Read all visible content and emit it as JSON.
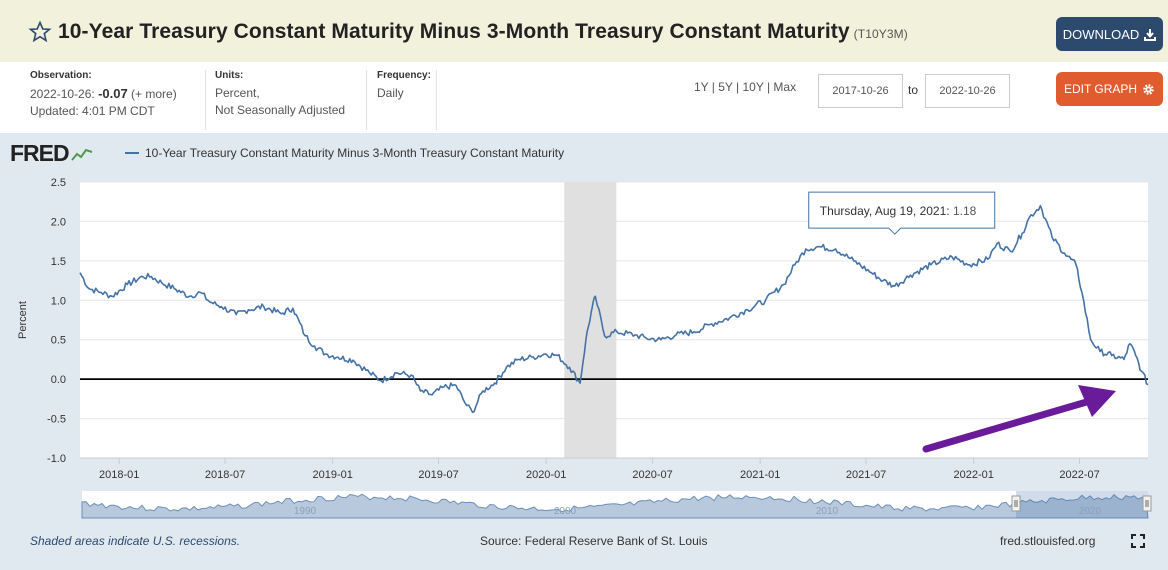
{
  "header": {
    "title": "10-Year Treasury Constant Maturity Minus 3-Month Treasury Constant Maturity",
    "series_id": "(T10Y3M)",
    "download_label": "DOWNLOAD"
  },
  "meta": {
    "observation_label": "Observation:",
    "observation_date": "2022-10-26:",
    "observation_value": "-0.07",
    "observation_more": "(+ more)",
    "updated": "Updated: 4:01 PM CDT",
    "units_label": "Units:",
    "units_line1": "Percent,",
    "units_line2": "Not Seasonally Adjusted",
    "frequency_label": "Frequency:",
    "frequency_value": "Daily"
  },
  "controls": {
    "ranges": "1Y | 5Y | 10Y | Max",
    "start_date": "2017-10-26",
    "to_label": "to",
    "end_date": "2022-10-26",
    "edit_label": "EDIT GRAPH"
  },
  "logo": "FRED",
  "footer": {
    "recession_note": "Shaded areas indicate U.S. recessions.",
    "source": "Source: Federal Reserve Bank of St. Louis",
    "site": "fred.stlouisfed.org"
  },
  "colors": {
    "line": "#4572a7",
    "recession": "#e0e0e0",
    "arrow": "#6a1b9a",
    "download": "#2c4a6e",
    "edit": "#e05c2e"
  },
  "chart_data": {
    "type": "line",
    "title": "",
    "xlabel": "",
    "ylabel": "Percent",
    "ylim": [
      -1.0,
      2.5
    ],
    "yticks": [
      2.5,
      2.0,
      1.5,
      1.0,
      0.5,
      0.0,
      -0.5,
      -1.0
    ],
    "ytick_labels": [
      "2.5",
      "2.0",
      "1.5",
      "1.0",
      "0.5",
      "0.0",
      "-0.5",
      "-1.0"
    ],
    "xlim": [
      "2017-10-26",
      "2022-10-26"
    ],
    "xticks": [
      "2018-01-01",
      "2018-07-01",
      "2019-01-01",
      "2019-07-01",
      "2020-01-01",
      "2020-07-01",
      "2021-01-01",
      "2021-07-01",
      "2022-01-01",
      "2022-07-01"
    ],
    "xtick_labels": [
      "2018-01",
      "2018-07",
      "2019-01",
      "2019-07",
      "2020-01",
      "2020-07",
      "2021-01",
      "2021-07",
      "2022-01",
      "2022-07"
    ],
    "grid": "horizontal",
    "recessions": [
      [
        "2020-02-01",
        "2020-04-30"
      ]
    ],
    "zero_line": 0.0,
    "series": [
      {
        "name": "10-Year Treasury Constant Maturity Minus 3-Month Treasury Constant Maturity",
        "x": [
          "2017-10-26",
          "2017-11-10",
          "2017-12-01",
          "2017-12-20",
          "2018-01-15",
          "2018-02-10",
          "2018-02-25",
          "2018-03-15",
          "2018-04-05",
          "2018-05-01",
          "2018-05-20",
          "2018-06-05",
          "2018-06-25",
          "2018-07-20",
          "2018-08-10",
          "2018-09-05",
          "2018-10-05",
          "2018-10-25",
          "2018-11-15",
          "2018-12-01",
          "2018-12-20",
          "2019-01-10",
          "2019-02-05",
          "2019-03-05",
          "2019-03-25",
          "2019-04-20",
          "2019-05-15",
          "2019-05-31",
          "2019-06-20",
          "2019-07-10",
          "2019-07-31",
          "2019-08-15",
          "2019-08-28",
          "2019-09-15",
          "2019-10-05",
          "2019-10-25",
          "2019-11-15",
          "2019-12-10",
          "2019-12-31",
          "2020-01-20",
          "2020-02-10",
          "2020-02-28",
          "2020-03-09",
          "2020-03-18",
          "2020-03-25",
          "2020-04-10",
          "2020-05-01",
          "2020-06-01",
          "2020-06-20",
          "2020-07-15",
          "2020-08-10",
          "2020-09-10",
          "2020-10-10",
          "2020-11-10",
          "2020-12-10",
          "2021-01-10",
          "2021-02-10",
          "2021-03-01",
          "2021-03-20",
          "2021-04-10",
          "2021-05-10",
          "2021-06-10",
          "2021-07-10",
          "2021-07-30",
          "2021-08-19",
          "2021-09-15",
          "2021-10-20",
          "2021-11-25",
          "2021-12-25",
          "2022-01-25",
          "2022-02-10",
          "2022-03-05",
          "2022-03-25",
          "2022-04-06",
          "2022-04-25",
          "2022-05-15",
          "2022-06-05",
          "2022-06-25",
          "2022-07-05",
          "2022-07-20",
          "2022-08-05",
          "2022-08-25",
          "2022-09-15",
          "2022-09-25",
          "2022-10-05",
          "2022-10-15",
          "2022-10-26"
        ],
        "values": [
          1.35,
          1.15,
          1.1,
          1.05,
          1.2,
          1.3,
          1.3,
          1.22,
          1.15,
          1.05,
          1.1,
          0.98,
          0.92,
          0.82,
          0.88,
          0.92,
          0.83,
          0.9,
          0.55,
          0.42,
          0.32,
          0.28,
          0.24,
          0.08,
          -0.02,
          0.08,
          0.05,
          -0.15,
          -0.2,
          -0.1,
          -0.08,
          -0.3,
          -0.42,
          -0.15,
          -0.05,
          0.15,
          0.25,
          0.28,
          0.32,
          0.3,
          0.15,
          -0.05,
          0.5,
          0.85,
          1.05,
          0.55,
          0.6,
          0.56,
          0.52,
          0.5,
          0.56,
          0.6,
          0.7,
          0.78,
          0.88,
          1.0,
          1.2,
          1.45,
          1.65,
          1.68,
          1.65,
          1.5,
          1.35,
          1.25,
          1.18,
          1.32,
          1.45,
          1.55,
          1.45,
          1.52,
          1.72,
          1.62,
          1.85,
          2.05,
          2.2,
          1.8,
          1.6,
          1.45,
          1.1,
          0.5,
          0.35,
          0.3,
          0.25,
          0.45,
          0.3,
          0.1,
          -0.07
        ]
      }
    ],
    "tooltip": {
      "date": "Thursday, Aug 19, 2021:",
      "value": "1.18"
    },
    "navigator_labels": [
      "1990",
      "2000",
      "2010",
      "2020"
    ],
    "annotation": "arrow pointing to latest value"
  }
}
